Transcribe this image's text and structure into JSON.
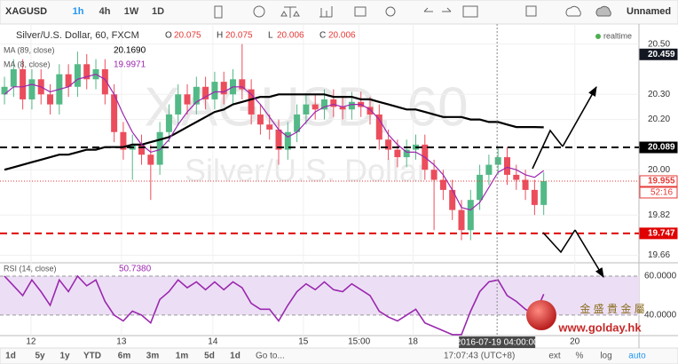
{
  "toolbar": {
    "symbol": "XAGUSD",
    "intervals": [
      "1h",
      "4h",
      "1W",
      "1D"
    ],
    "active_interval": 0,
    "layout_name": "Unnamed"
  },
  "chart_data": [
    {
      "type": "candlestick",
      "title": "Silver/U.S. Dollar, 60, FXCM",
      "ohlc": [
        {
          "label": "O",
          "value": "20.075"
        },
        {
          "label": "H",
          "value": "20.075"
        },
        {
          "label": "L",
          "value": "20.006"
        },
        {
          "label": "C",
          "value": "20.006"
        }
      ],
      "realtime": "realtime",
      "watermark": [
        "XAGUSD, 60",
        "Silver/U.S. Dollar"
      ],
      "up_color": "#53b987",
      "down_color": "#eb4d5c",
      "open": [
        20.3,
        20.33,
        20.4,
        20.28,
        20.36,
        20.3,
        20.26,
        20.38,
        20.33,
        20.42,
        20.36,
        20.4,
        20.3,
        20.15,
        20.08,
        20.1,
        20.06,
        20.02,
        20.15,
        20.22,
        20.3,
        20.26,
        20.33,
        20.28,
        20.35,
        20.3,
        20.36,
        20.32,
        20.22,
        20.18,
        20.16,
        20.08,
        20.15,
        20.22,
        20.26,
        20.24,
        20.28,
        20.25,
        20.24,
        20.27,
        20.25,
        20.22,
        20.12,
        20.08,
        20.05,
        20.08,
        20.1,
        20.0,
        19.96,
        19.92,
        19.84,
        19.76,
        19.88,
        19.98,
        20.02,
        20.05,
        19.98,
        19.96,
        19.92,
        19.86
      ],
      "high": [
        20.37,
        20.44,
        20.44,
        20.4,
        20.4,
        20.34,
        20.42,
        20.42,
        20.47,
        20.46,
        20.44,
        20.44,
        20.34,
        20.19,
        20.14,
        20.14,
        20.1,
        20.19,
        20.26,
        20.34,
        20.34,
        20.37,
        20.37,
        20.39,
        20.39,
        20.4,
        20.5,
        20.36,
        20.26,
        20.22,
        20.2,
        20.19,
        20.26,
        20.3,
        20.3,
        20.32,
        20.32,
        20.29,
        20.31,
        20.31,
        20.29,
        20.26,
        20.16,
        20.12,
        20.12,
        20.14,
        20.14,
        20.04,
        20.0,
        19.96,
        19.88,
        19.92,
        20.02,
        20.06,
        20.09,
        20.09,
        20.02,
        20.0,
        19.96,
        19.99
      ],
      "low": [
        20.26,
        20.29,
        20.24,
        20.24,
        20.26,
        20.22,
        20.22,
        20.29,
        20.29,
        20.32,
        20.32,
        20.26,
        20.11,
        20.04,
        19.96,
        20.02,
        19.88,
        19.98,
        20.11,
        20.18,
        20.22,
        20.22,
        20.24,
        20.24,
        20.26,
        20.26,
        20.28,
        20.18,
        20.14,
        20.12,
        20.02,
        20.04,
        20.11,
        20.18,
        20.2,
        20.2,
        20.21,
        20.2,
        20.2,
        20.21,
        20.18,
        20.08,
        20.04,
        20.01,
        20.01,
        20.04,
        19.96,
        19.76,
        19.88,
        19.8,
        19.72,
        19.72,
        19.84,
        19.94,
        19.98,
        19.94,
        19.92,
        19.88,
        19.82,
        19.82
      ],
      "close": [
        20.33,
        20.4,
        20.28,
        20.36,
        20.3,
        20.26,
        20.38,
        20.33,
        20.42,
        20.36,
        20.4,
        20.3,
        20.15,
        20.08,
        20.1,
        20.06,
        20.02,
        20.15,
        20.22,
        20.3,
        20.26,
        20.33,
        20.28,
        20.35,
        20.3,
        20.36,
        20.32,
        20.22,
        20.18,
        20.16,
        20.08,
        20.15,
        20.22,
        20.26,
        20.24,
        20.28,
        20.25,
        20.24,
        20.27,
        20.25,
        20.22,
        20.12,
        20.08,
        20.05,
        20.08,
        20.1,
        20.0,
        19.96,
        19.92,
        19.84,
        19.76,
        19.88,
        19.98,
        20.02,
        20.05,
        19.98,
        19.96,
        19.92,
        19.86,
        19.955
      ],
      "series": [
        {
          "name": "MA (89, close)",
          "color": "#000000",
          "last_label": "20.1690",
          "values": [
            20.0,
            20.01,
            20.02,
            20.03,
            20.04,
            20.05,
            20.06,
            20.06,
            20.07,
            20.08,
            20.08,
            20.09,
            20.09,
            20.09,
            20.1,
            20.1,
            20.11,
            20.12,
            20.13,
            20.15,
            20.17,
            20.19,
            20.21,
            20.23,
            20.24,
            20.26,
            20.27,
            20.28,
            20.29,
            20.29,
            20.3,
            20.3,
            20.3,
            20.3,
            20.3,
            20.3,
            20.29,
            20.29,
            20.29,
            20.28,
            20.28,
            20.27,
            20.26,
            20.25,
            20.24,
            20.24,
            20.23,
            20.22,
            20.21,
            20.21,
            20.21,
            20.2,
            20.2,
            20.19,
            20.19,
            20.18,
            20.17,
            20.17,
            20.17,
            20.169
          ]
        },
        {
          "name": "MA (8, close)",
          "color": "#9b27af",
          "last_label": "19.9971",
          "values": [
            20.3,
            20.33,
            20.33,
            20.34,
            20.33,
            20.31,
            20.32,
            20.33,
            20.36,
            20.37,
            20.38,
            20.36,
            20.3,
            20.22,
            20.15,
            20.1,
            20.07,
            20.08,
            20.12,
            20.18,
            20.23,
            20.27,
            20.29,
            20.31,
            20.31,
            20.33,
            20.33,
            20.3,
            20.26,
            20.21,
            20.16,
            20.13,
            20.15,
            20.19,
            20.23,
            20.25,
            20.26,
            20.25,
            20.26,
            20.26,
            20.24,
            20.2,
            20.14,
            20.1,
            20.07,
            20.07,
            20.05,
            20.02,
            19.98,
            19.92,
            19.85,
            19.84,
            19.87,
            19.93,
            19.99,
            20.01,
            20.0,
            19.98,
            19.97,
            19.9971
          ]
        }
      ],
      "markers": [
        {
          "value": 20.459,
          "color": "#131722",
          "line": "none"
        },
        {
          "value": 20.089,
          "color": "#000000",
          "line": "dashed"
        },
        {
          "value": 19.955,
          "color": "#e53935",
          "line": "dotted"
        },
        {
          "value": 19.747,
          "color": "#e00000",
          "line": "dashed"
        }
      ],
      "countdown": "52:16",
      "xlim": [
        -0.49,
        69.42
      ],
      "xticks": [
        {
          "value": 2.9,
          "label": "12"
        },
        {
          "value": 12.8,
          "label": "13"
        },
        {
          "value": 22.8,
          "label": "14"
        },
        {
          "value": 32.7,
          "label": "15"
        },
        {
          "value": 38.8,
          "label": "15:00"
        },
        {
          "value": 44.7,
          "label": "18"
        },
        {
          "value": 62.4,
          "label": "20"
        }
      ],
      "crosshair": {
        "value": 53.9,
        "label": "2016-07-19 04:00:00"
      },
      "ylim": [
        19.63,
        20.58
      ],
      "yticks": [
        {
          "value": 20.5,
          "label": "20.50"
        },
        {
          "value": 20.3,
          "label": "20.30"
        },
        {
          "value": 20.2,
          "label": "20.20"
        },
        {
          "value": 20.0,
          "label": "20.00"
        },
        19.82,
        19.66
      ],
      "grid": true
    },
    {
      "type": "line",
      "title": "RSI (14, close)",
      "last_label": "50.7380",
      "color": "#9b27af",
      "band": [
        40,
        60
      ],
      "band_color": "#ecdff5",
      "values": [
        60,
        55,
        50,
        58,
        52,
        45,
        58,
        52,
        60,
        55,
        58,
        47,
        40,
        37,
        42,
        40,
        36,
        48,
        52,
        58,
        54,
        57,
        53,
        57,
        53,
        57,
        54,
        46,
        43,
        43,
        37,
        45,
        52,
        56,
        53,
        57,
        53,
        52,
        56,
        53,
        50,
        42,
        39,
        37,
        40,
        43,
        36,
        34,
        32,
        30,
        30,
        42,
        52,
        57,
        58,
        50,
        47,
        43,
        40,
        50.738
      ],
      "ylim": [
        29.5,
        66.8
      ],
      "yticks": [
        {
          "value": 60,
          "label": "60.0000"
        },
        {
          "value": 40,
          "label": "40.0000"
        }
      ]
    }
  ],
  "logo": {
    "name": "金 盛 貴 金 屬",
    "url": "www.golday.hk"
  },
  "bottom_bar": {
    "ranges": [
      "1d",
      "5y",
      "1y",
      "YTD",
      "6m",
      "3m",
      "1m",
      "5d",
      "1d"
    ],
    "goto": "Go to...",
    "clock": "17:07:43 (UTC+8)",
    "options": [
      "ext",
      "%",
      "log",
      "auto"
    ]
  }
}
